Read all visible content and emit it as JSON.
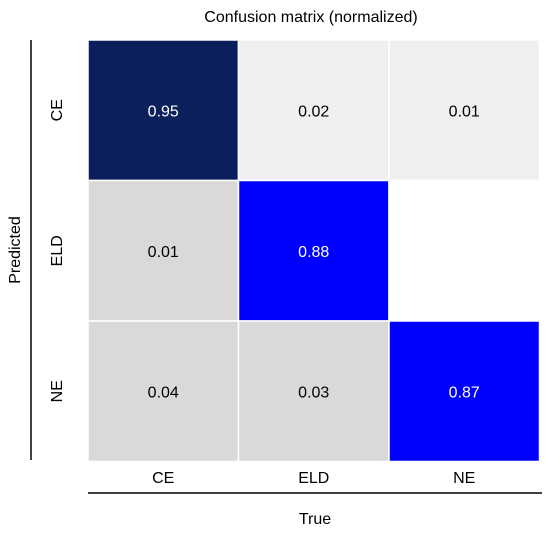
{
  "chart_data": {
    "type": "heatmap",
    "title": "Confusion matrix (normalized)",
    "xlabel": "True",
    "ylabel": "Predicted",
    "x_categories": [
      "CE",
      "ELD",
      "NE"
    ],
    "y_categories": [
      "CE",
      "ELD",
      "NE"
    ],
    "values": [
      [
        0.95,
        0.02,
        0.01
      ],
      [
        0.01,
        0.88,
        null
      ],
      [
        0.04,
        0.03,
        0.87
      ]
    ],
    "cell_colors": [
      [
        "#0b1f5c",
        "#efefef",
        "#efefef"
      ],
      [
        "#d9d9d9",
        "#0000ff",
        "#ffffff"
      ],
      [
        "#d9d9d9",
        "#d9d9d9",
        "#0000ff"
      ]
    ],
    "text_colors": [
      [
        "#ffffff",
        "#000000",
        "#000000"
      ],
      [
        "#000000",
        "#ffffff",
        "#000000"
      ],
      [
        "#000000",
        "#000000",
        "#ffffff"
      ]
    ]
  }
}
